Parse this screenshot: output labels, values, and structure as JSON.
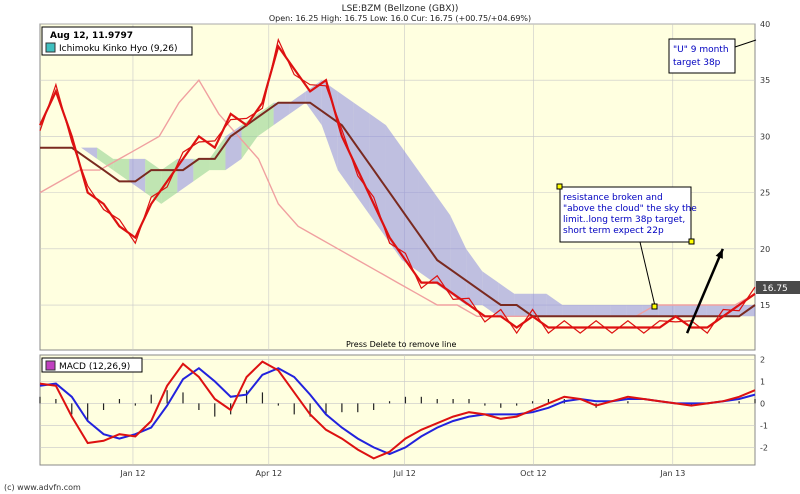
{
  "header": {
    "symbol": "LSE:BZM (Bellzone (GBX))",
    "ohlc": "Open: 16.25 High: 16.75 Low: 16.0 Cur: 16.75 (+00.75/+04.69%)"
  },
  "cursor_box": {
    "text": "Aug 12, 11.9797"
  },
  "legend": {
    "indicator": "Ichimoku Kinko Hyo (9,26)",
    "indicator_color": "#40c0c0"
  },
  "macd_legend": {
    "label": "MACD (12,26,9)",
    "color": "#c040c0"
  },
  "annotations": {
    "target": [
      "\"U\" 9 month",
      "target 38p"
    ],
    "note": [
      "resistance broken and",
      "\"above the cloud\" the sky the",
      "limit..long term 38p target,",
      "short term expect 22p"
    ],
    "hint": "Press Delete to remove line"
  },
  "price_badge": "16.75",
  "footer": "(c) www.advfn.com",
  "colors": {
    "plot_bg": "#ffffe0",
    "price": "#dd1111",
    "kijun": "#7a2a20",
    "chikou": "#f0a0a0",
    "cloud_bull": "#8ccf8c",
    "cloud_bear": "#8a8ae0",
    "macd": "#dd1111",
    "signal": "#2222dd",
    "histogram": "#222222"
  },
  "chart_data": [
    {
      "type": "line",
      "name": "price",
      "x_ticks": [
        "Jan 12",
        "Apr 12",
        "Jul 12",
        "Oct 12",
        "Jan 13"
      ],
      "y_ticks": [
        "15",
        "20",
        "25",
        "30",
        "35",
        "40"
      ],
      "ylim": [
        11,
        40
      ],
      "grid": true,
      "series": [
        {
          "name": "",
          "values": [
            31,
            34,
            30,
            25,
            24,
            22,
            21,
            24,
            26,
            28,
            30,
            29,
            32,
            31,
            33,
            38,
            36,
            34,
            35,
            30,
            27,
            24,
            21,
            19,
            17,
            17,
            16,
            15,
            14,
            14,
            13,
            14,
            13,
            13,
            13,
            13,
            13,
            13,
            13,
            13,
            14,
            13,
            13,
            14,
            15,
            16
          ]
        },
        {
          "name": "",
          "values": [
            29,
            29,
            29,
            28,
            27,
            26,
            26,
            27,
            27,
            27,
            28,
            28,
            30,
            31,
            32,
            33,
            33,
            33,
            32,
            31,
            29,
            27,
            25,
            23,
            21,
            19,
            18,
            17,
            16,
            15,
            15,
            14,
            14,
            14,
            14,
            14,
            14,
            14,
            14,
            14,
            14,
            14,
            14,
            14,
            14,
            15
          ]
        },
        {
          "name": "",
          "values": [
            25,
            26,
            27,
            27,
            28,
            29,
            30,
            33,
            35,
            32,
            30,
            28,
            24,
            22,
            21,
            20,
            19,
            18,
            17,
            16,
            15,
            15,
            14,
            14,
            14,
            14,
            14,
            14,
            14,
            14,
            14,
            15,
            15,
            15,
            15,
            15,
            16
          ]
        }
      ],
      "cloud_upper": [
        29,
        29,
        29,
        28,
        28,
        28,
        27,
        28,
        28,
        28,
        30,
        31,
        32,
        33,
        33,
        34,
        35,
        34,
        33,
        32,
        31,
        29,
        27,
        25,
        23,
        20,
        18,
        17,
        16,
        16,
        16,
        15,
        15,
        15,
        15,
        15,
        15,
        15,
        15,
        15,
        15,
        15,
        15,
        15
      ],
      "cloud_lower": [
        29,
        29,
        28,
        27,
        26,
        25,
        24,
        25,
        26,
        27,
        27,
        28,
        30,
        31,
        32,
        33,
        31,
        27,
        25,
        23,
        21,
        19,
        18,
        17,
        16,
        15,
        15,
        14,
        14,
        14,
        14,
        14,
        14,
        14,
        14,
        14,
        14,
        14,
        14,
        14,
        14,
        14,
        14,
        14
      ],
      "arrow": {
        "from": [
          0.905,
          12.5
        ],
        "to": [
          0.955,
          20.0
        ]
      }
    },
    {
      "type": "line",
      "name": "macd",
      "y_ticks": [
        "-2",
        "-1",
        "0",
        "1",
        "2"
      ],
      "ylim": [
        -2.8,
        2.2
      ],
      "series": [
        {
          "name": "",
          "values": [
            0.9,
            0.8,
            -0.6,
            -1.8,
            -1.7,
            -1.4,
            -1.5,
            -0.8,
            0.8,
            1.8,
            1.2,
            0.2,
            -0.3,
            1.2,
            1.9,
            1.5,
            0.5,
            -0.5,
            -1.2,
            -1.6,
            -2.1,
            -2.5,
            -2.2,
            -1.6,
            -1.2,
            -0.9,
            -0.6,
            -0.4,
            -0.5,
            -0.7,
            -0.6,
            -0.3,
            0,
            0.3,
            0.2,
            -0.1,
            0.1,
            0.3,
            0.2,
            0.1,
            0,
            -0.1,
            0,
            0.1,
            0.3,
            0.6
          ]
        },
        {
          "name": "",
          "values": [
            0.8,
            0.9,
            0.3,
            -0.8,
            -1.4,
            -1.6,
            -1.4,
            -1.1,
            -0.1,
            1.1,
            1.6,
            1,
            0.3,
            0.4,
            1.3,
            1.6,
            1.2,
            0.4,
            -0.5,
            -1.1,
            -1.6,
            -2,
            -2.3,
            -2,
            -1.5,
            -1.1,
            -0.8,
            -0.6,
            -0.5,
            -0.5,
            -0.5,
            -0.4,
            -0.2,
            0.1,
            0.2,
            0.1,
            0.1,
            0.2,
            0.2,
            0.1,
            0,
            0,
            0,
            0.1,
            0.2,
            0.4
          ]
        }
      ],
      "histogram": [
        0.3,
        0.2,
        -0.5,
        -0.8,
        -0.3,
        0.2,
        -0.1,
        0.4,
        0.6,
        0.5,
        -0.3,
        -0.6,
        -0.5,
        0.6,
        0.5,
        -0.1,
        -0.5,
        -0.6,
        -0.5,
        -0.4,
        -0.4,
        -0.3,
        0.1,
        0.3,
        0.3,
        0.2,
        0.2,
        0.2,
        -0.1,
        -0.2,
        -0.1,
        0.1,
        0.2,
        0.2,
        0,
        -0.2,
        0,
        0.1,
        0,
        0,
        0,
        -0.1,
        0,
        0,
        0.1,
        0.2
      ]
    }
  ]
}
